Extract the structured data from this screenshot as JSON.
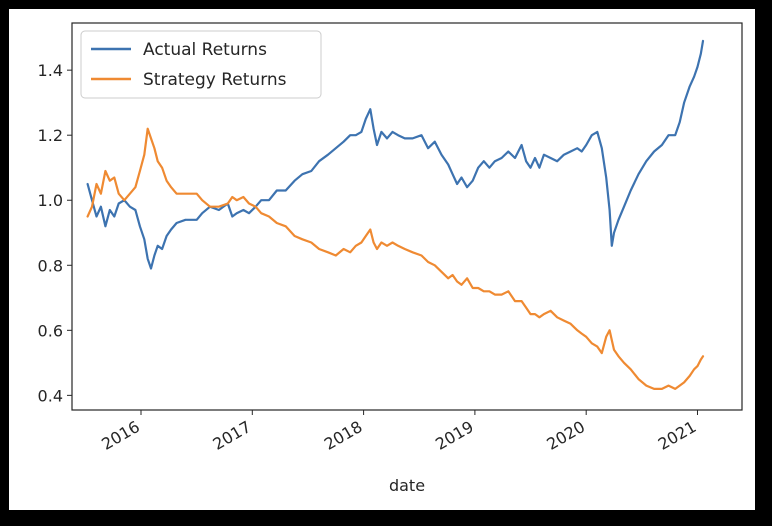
{
  "chart_data": {
    "type": "line",
    "title": "",
    "xlabel": "date",
    "ylabel": "",
    "xlim": [
      2015.38,
      2021.4
    ],
    "ylim": [
      0.355,
      1.545
    ],
    "grid": false,
    "legend_position": "top-left",
    "y_ticks": [
      {
        "value": 0.4,
        "label": "0.4"
      },
      {
        "value": 0.6,
        "label": "0.6"
      },
      {
        "value": 0.8,
        "label": "0.8"
      },
      {
        "value": 1.0,
        "label": "1.0"
      },
      {
        "value": 1.2,
        "label": "1.2"
      },
      {
        "value": 1.4,
        "label": "1.4"
      }
    ],
    "x_ticks": [
      {
        "value": 2016,
        "label": "2016"
      },
      {
        "value": 2017,
        "label": "2017"
      },
      {
        "value": 2018,
        "label": "2018"
      },
      {
        "value": 2019,
        "label": "2019"
      },
      {
        "value": 2020,
        "label": "2020"
      },
      {
        "value": 2021,
        "label": "2021"
      }
    ],
    "series": [
      {
        "name": "Actual Returns",
        "color": "#3d73b0",
        "points": [
          [
            2015.52,
            1.05
          ],
          [
            2015.56,
            1.0
          ],
          [
            2015.6,
            0.95
          ],
          [
            2015.64,
            0.98
          ],
          [
            2015.68,
            0.92
          ],
          [
            2015.72,
            0.97
          ],
          [
            2015.76,
            0.95
          ],
          [
            2015.8,
            0.99
          ],
          [
            2015.85,
            1.0
          ],
          [
            2015.9,
            0.98
          ],
          [
            2015.95,
            0.97
          ],
          [
            2015.99,
            0.92
          ],
          [
            2016.03,
            0.88
          ],
          [
            2016.06,
            0.82
          ],
          [
            2016.09,
            0.79
          ],
          [
            2016.12,
            0.83
          ],
          [
            2016.15,
            0.86
          ],
          [
            2016.19,
            0.85
          ],
          [
            2016.23,
            0.89
          ],
          [
            2016.27,
            0.91
          ],
          [
            2016.32,
            0.93
          ],
          [
            2016.4,
            0.94
          ],
          [
            2016.5,
            0.94
          ],
          [
            2016.55,
            0.96
          ],
          [
            2016.62,
            0.98
          ],
          [
            2016.7,
            0.97
          ],
          [
            2016.78,
            0.99
          ],
          [
            2016.82,
            0.95
          ],
          [
            2016.86,
            0.96
          ],
          [
            2016.92,
            0.97
          ],
          [
            2016.97,
            0.96
          ],
          [
            2017.03,
            0.98
          ],
          [
            2017.08,
            1.0
          ],
          [
            2017.15,
            1.0
          ],
          [
            2017.22,
            1.03
          ],
          [
            2017.3,
            1.03
          ],
          [
            2017.38,
            1.06
          ],
          [
            2017.45,
            1.08
          ],
          [
            2017.53,
            1.09
          ],
          [
            2017.6,
            1.12
          ],
          [
            2017.68,
            1.14
          ],
          [
            2017.75,
            1.16
          ],
          [
            2017.82,
            1.18
          ],
          [
            2017.88,
            1.2
          ],
          [
            2017.93,
            1.2
          ],
          [
            2017.98,
            1.21
          ],
          [
            2018.02,
            1.25
          ],
          [
            2018.06,
            1.28
          ],
          [
            2018.09,
            1.22
          ],
          [
            2018.12,
            1.17
          ],
          [
            2018.16,
            1.21
          ],
          [
            2018.21,
            1.19
          ],
          [
            2018.26,
            1.21
          ],
          [
            2018.31,
            1.2
          ],
          [
            2018.37,
            1.19
          ],
          [
            2018.44,
            1.19
          ],
          [
            2018.52,
            1.2
          ],
          [
            2018.58,
            1.16
          ],
          [
            2018.64,
            1.18
          ],
          [
            2018.7,
            1.14
          ],
          [
            2018.76,
            1.11
          ],
          [
            2018.8,
            1.08
          ],
          [
            2018.84,
            1.05
          ],
          [
            2018.88,
            1.07
          ],
          [
            2018.93,
            1.04
          ],
          [
            2018.98,
            1.06
          ],
          [
            2019.03,
            1.1
          ],
          [
            2019.08,
            1.12
          ],
          [
            2019.13,
            1.1
          ],
          [
            2019.18,
            1.12
          ],
          [
            2019.24,
            1.13
          ],
          [
            2019.3,
            1.15
          ],
          [
            2019.36,
            1.13
          ],
          [
            2019.42,
            1.17
          ],
          [
            2019.46,
            1.12
          ],
          [
            2019.5,
            1.1
          ],
          [
            2019.54,
            1.13
          ],
          [
            2019.58,
            1.1
          ],
          [
            2019.62,
            1.14
          ],
          [
            2019.68,
            1.13
          ],
          [
            2019.74,
            1.12
          ],
          [
            2019.8,
            1.14
          ],
          [
            2019.86,
            1.15
          ],
          [
            2019.92,
            1.16
          ],
          [
            2019.96,
            1.15
          ],
          [
            2020.0,
            1.17
          ],
          [
            2020.05,
            1.2
          ],
          [
            2020.1,
            1.21
          ],
          [
            2020.14,
            1.16
          ],
          [
            2020.18,
            1.07
          ],
          [
            2020.21,
            0.97
          ],
          [
            2020.23,
            0.86
          ],
          [
            2020.25,
            0.9
          ],
          [
            2020.29,
            0.94
          ],
          [
            2020.34,
            0.98
          ],
          [
            2020.4,
            1.03
          ],
          [
            2020.47,
            1.08
          ],
          [
            2020.54,
            1.12
          ],
          [
            2020.61,
            1.15
          ],
          [
            2020.68,
            1.17
          ],
          [
            2020.74,
            1.2
          ],
          [
            2020.8,
            1.2
          ],
          [
            2020.84,
            1.24
          ],
          [
            2020.88,
            1.3
          ],
          [
            2020.93,
            1.35
          ],
          [
            2020.97,
            1.38
          ],
          [
            2021.0,
            1.41
          ],
          [
            2021.03,
            1.45
          ],
          [
            2021.05,
            1.49
          ]
        ]
      },
      {
        "name": "Strategy Returns",
        "color": "#ef8a32",
        "points": [
          [
            2015.52,
            0.95
          ],
          [
            2015.56,
            0.98
          ],
          [
            2015.6,
            1.05
          ],
          [
            2015.64,
            1.02
          ],
          [
            2015.68,
            1.09
          ],
          [
            2015.72,
            1.06
          ],
          [
            2015.76,
            1.07
          ],
          [
            2015.8,
            1.02
          ],
          [
            2015.85,
            1.0
          ],
          [
            2015.9,
            1.02
          ],
          [
            2015.95,
            1.04
          ],
          [
            2015.99,
            1.09
          ],
          [
            2016.03,
            1.14
          ],
          [
            2016.06,
            1.22
          ],
          [
            2016.09,
            1.19
          ],
          [
            2016.12,
            1.16
          ],
          [
            2016.15,
            1.12
          ],
          [
            2016.19,
            1.1
          ],
          [
            2016.23,
            1.06
          ],
          [
            2016.27,
            1.04
          ],
          [
            2016.32,
            1.02
          ],
          [
            2016.4,
            1.02
          ],
          [
            2016.5,
            1.02
          ],
          [
            2016.55,
            1.0
          ],
          [
            2016.62,
            0.98
          ],
          [
            2016.7,
            0.98
          ],
          [
            2016.78,
            0.99
          ],
          [
            2016.82,
            1.01
          ],
          [
            2016.86,
            1.0
          ],
          [
            2016.92,
            1.01
          ],
          [
            2016.97,
            0.99
          ],
          [
            2017.03,
            0.98
          ],
          [
            2017.08,
            0.96
          ],
          [
            2017.15,
            0.95
          ],
          [
            2017.22,
            0.93
          ],
          [
            2017.3,
            0.92
          ],
          [
            2017.38,
            0.89
          ],
          [
            2017.45,
            0.88
          ],
          [
            2017.53,
            0.87
          ],
          [
            2017.6,
            0.85
          ],
          [
            2017.68,
            0.84
          ],
          [
            2017.75,
            0.83
          ],
          [
            2017.82,
            0.85
          ],
          [
            2017.88,
            0.84
          ],
          [
            2017.93,
            0.86
          ],
          [
            2017.98,
            0.87
          ],
          [
            2018.02,
            0.89
          ],
          [
            2018.06,
            0.91
          ],
          [
            2018.09,
            0.87
          ],
          [
            2018.12,
            0.85
          ],
          [
            2018.16,
            0.87
          ],
          [
            2018.21,
            0.86
          ],
          [
            2018.26,
            0.87
          ],
          [
            2018.31,
            0.86
          ],
          [
            2018.37,
            0.85
          ],
          [
            2018.44,
            0.84
          ],
          [
            2018.52,
            0.83
          ],
          [
            2018.58,
            0.81
          ],
          [
            2018.64,
            0.8
          ],
          [
            2018.7,
            0.78
          ],
          [
            2018.76,
            0.76
          ],
          [
            2018.8,
            0.77
          ],
          [
            2018.84,
            0.75
          ],
          [
            2018.88,
            0.74
          ],
          [
            2018.93,
            0.76
          ],
          [
            2018.98,
            0.73
          ],
          [
            2019.03,
            0.73
          ],
          [
            2019.08,
            0.72
          ],
          [
            2019.13,
            0.72
          ],
          [
            2019.18,
            0.71
          ],
          [
            2019.24,
            0.71
          ],
          [
            2019.3,
            0.72
          ],
          [
            2019.36,
            0.69
          ],
          [
            2019.42,
            0.69
          ],
          [
            2019.46,
            0.67
          ],
          [
            2019.5,
            0.65
          ],
          [
            2019.54,
            0.65
          ],
          [
            2019.58,
            0.64
          ],
          [
            2019.62,
            0.65
          ],
          [
            2019.68,
            0.66
          ],
          [
            2019.74,
            0.64
          ],
          [
            2019.8,
            0.63
          ],
          [
            2019.86,
            0.62
          ],
          [
            2019.92,
            0.6
          ],
          [
            2019.96,
            0.59
          ],
          [
            2020.0,
            0.58
          ],
          [
            2020.05,
            0.56
          ],
          [
            2020.1,
            0.55
          ],
          [
            2020.14,
            0.53
          ],
          [
            2020.18,
            0.58
          ],
          [
            2020.21,
            0.6
          ],
          [
            2020.23,
            0.57
          ],
          [
            2020.25,
            0.54
          ],
          [
            2020.29,
            0.52
          ],
          [
            2020.34,
            0.5
          ],
          [
            2020.4,
            0.48
          ],
          [
            2020.47,
            0.45
          ],
          [
            2020.54,
            0.43
          ],
          [
            2020.61,
            0.42
          ],
          [
            2020.68,
            0.42
          ],
          [
            2020.74,
            0.43
          ],
          [
            2020.8,
            0.42
          ],
          [
            2020.84,
            0.43
          ],
          [
            2020.88,
            0.44
          ],
          [
            2020.93,
            0.46
          ],
          [
            2020.97,
            0.48
          ],
          [
            2021.0,
            0.49
          ],
          [
            2021.03,
            0.51
          ],
          [
            2021.05,
            0.52
          ]
        ]
      }
    ]
  }
}
